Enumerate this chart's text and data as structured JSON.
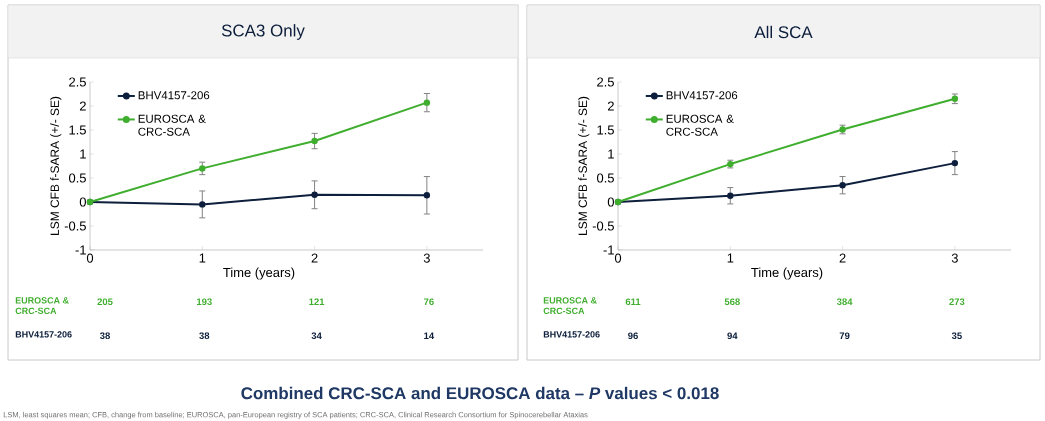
{
  "chart_data": [
    {
      "type": "line",
      "title": "SCA3 Only",
      "xlabel": "Time (years)",
      "ylabel": "LSM CFB f-SARA (+/- SE)",
      "x": [
        0,
        1,
        2,
        3
      ],
      "xlim": [
        0,
        3.5
      ],
      "xticks": [
        0,
        1,
        2,
        3
      ],
      "ylim": [
        -1,
        2.5
      ],
      "yticks": [
        -1,
        -0.5,
        0,
        0.5,
        1,
        1.5,
        2,
        2.5
      ],
      "marker": "circle",
      "line_style": "solid",
      "legend": "top left",
      "series": [
        {
          "name": "BHV4157-206",
          "color": "#0d1f3c",
          "values": [
            0,
            -0.05,
            0.15,
            0.14
          ],
          "errors": [
            null,
            0.28,
            0.29,
            0.39
          ]
        },
        {
          "name": "EUROSCA & CRC-SCA",
          "color": "#3fae2e",
          "values": [
            0,
            0.7,
            1.27,
            2.07
          ],
          "errors": [
            null,
            0.13,
            0.16,
            0.19
          ]
        }
      ],
      "annotations": [
        "EUROSCA & CRC-SCA",
        "205",
        "193",
        "121",
        "76",
        "BHV4157-206",
        "38",
        "38",
        "34",
        "14",
        "Combined CRC-SCA and EUROSCA data – *P* values < 0.018",
        "LSM, least squares mean; CFB, change from baseline; EUROSCA, pan-European registry of SCA patients; CRC-SCA, Clinical Research Consortium for Spinocerebellar Ataxias"
      ]
    },
    {
      "type": "line",
      "title": "All SCA",
      "xlabel": "Time (years)",
      "ylabel": "LSM CFB f-SARA (+/- SE)",
      "x": [
        0,
        1,
        2,
        3
      ],
      "xlim": [
        0,
        3.5
      ],
      "xticks": [
        0,
        1,
        2,
        3
      ],
      "ylim": [
        -1,
        2.5
      ],
      "yticks": [
        -1,
        -0.5,
        0,
        0.5,
        1,
        1.5,
        2,
        2.5
      ],
      "marker": "circle",
      "line_style": "solid",
      "legend": "top left",
      "series": [
        {
          "name": "BHV4157-206",
          "color": "#0d1f3c",
          "values": [
            0,
            0.13,
            0.35,
            0.81
          ],
          "errors": [
            null,
            0.17,
            0.18,
            0.24
          ]
        },
        {
          "name": "EUROSCA & CRC-SCA",
          "color": "#3fae2e",
          "values": [
            0,
            0.79,
            1.51,
            2.15
          ],
          "errors": [
            null,
            0.08,
            0.09,
            0.1
          ]
        }
      ],
      "annotations": [
        "EUROSCA & CRC-SCA",
        "611",
        "568",
        "384",
        "273",
        "BHV4157-206",
        "96",
        "94",
        "79",
        "35"
      ]
    }
  ]
}
